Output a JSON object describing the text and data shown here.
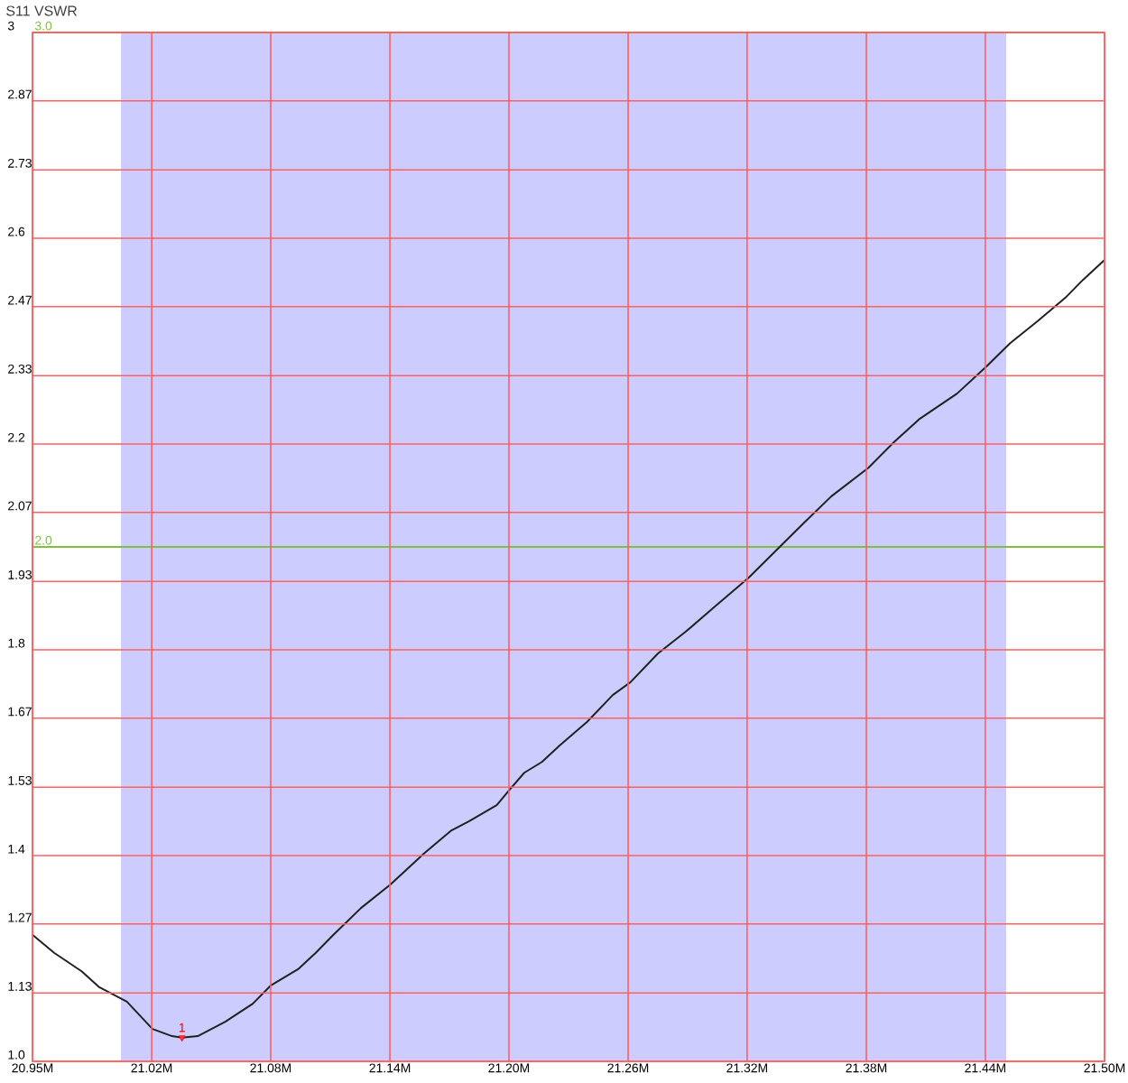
{
  "chart_data": {
    "type": "line",
    "title": "S11 VSWR",
    "x": [
      20.955,
      20.966,
      20.98,
      20.989,
      21.003,
      21.016,
      21.026,
      21.031,
      21.039,
      21.053,
      21.067,
      21.076,
      21.09,
      21.099,
      21.108,
      21.122,
      21.137,
      21.154,
      21.168,
      21.177,
      21.191,
      21.198,
      21.205,
      21.214,
      21.223,
      21.237,
      21.25,
      21.259,
      21.273,
      21.287,
      21.301,
      21.319,
      21.333,
      21.347,
      21.361,
      21.38,
      21.393,
      21.406,
      21.425,
      21.44,
      21.452,
      21.466,
      21.48,
      21.489,
      21.5
    ],
    "series": [
      {
        "color": "#202020",
        "values": [
          1.246,
          1.211,
          1.175,
          1.144,
          1.116,
          1.063,
          1.049,
          1.046,
          1.049,
          1.077,
          1.112,
          1.147,
          1.179,
          1.211,
          1.246,
          1.298,
          1.344,
          1.404,
          1.449,
          1.467,
          1.498,
          1.53,
          1.561,
          1.582,
          1.614,
          1.66,
          1.712,
          1.737,
          1.793,
          1.835,
          1.881,
          1.94,
          1.993,
          2.046,
          2.098,
          2.154,
          2.204,
          2.249,
          2.298,
          2.351,
          2.396,
          2.439,
          2.484,
          2.519,
          2.558
        ]
      }
    ],
    "xlim": [
      20.955,
      21.5
    ],
    "xticks": [
      {
        "value": 20.955,
        "label": "20.95M"
      },
      {
        "value": 21.0156,
        "label": "21.02M"
      },
      {
        "value": 21.0761,
        "label": "21.08M"
      },
      {
        "value": 21.1367,
        "label": "21.14M"
      },
      {
        "value": 21.1972,
        "label": "21.20M"
      },
      {
        "value": 21.2578,
        "label": "21.26M"
      },
      {
        "value": 21.3183,
        "label": "21.32M"
      },
      {
        "value": 21.3789,
        "label": "21.38M"
      },
      {
        "value": 21.4394,
        "label": "21.44M"
      },
      {
        "value": 21.5,
        "label": "21.50M"
      }
    ],
    "ylim": [
      1.0,
      3.0
    ],
    "yticks": [
      {
        "value": 1.0,
        "label": "1.0"
      },
      {
        "value": 1.133,
        "label": "1.13"
      },
      {
        "value": 1.267,
        "label": "1.27"
      },
      {
        "value": 1.4,
        "label": "1.4"
      },
      {
        "value": 1.533,
        "label": "1.53"
      },
      {
        "value": 1.667,
        "label": "1.67"
      },
      {
        "value": 1.8,
        "label": "1.8"
      },
      {
        "value": 1.933,
        "label": "1.93"
      },
      {
        "value": 2.067,
        "label": "2.07"
      },
      {
        "value": 2.2,
        "label": "2.2"
      },
      {
        "value": 2.333,
        "label": "2.33"
      },
      {
        "value": 2.467,
        "label": "2.47"
      },
      {
        "value": 2.6,
        "label": "2.6"
      },
      {
        "value": 2.733,
        "label": "2.73"
      },
      {
        "value": 2.867,
        "label": "2.87"
      },
      {
        "value": 3.0,
        "label": "3"
      }
    ],
    "grid": true,
    "line_style": "solid",
    "bands": [
      {
        "axis": "x",
        "from": 21.0,
        "to": 21.45,
        "color": "#ccccff"
      }
    ],
    "ref_lines": [
      {
        "axis": "y",
        "value": 3.0,
        "label": "3.0",
        "color": "#80c040"
      },
      {
        "axis": "y",
        "value": 2.0,
        "label": "2.0",
        "color": "#80c040"
      }
    ],
    "annotations": [
      {
        "text": "1",
        "x": 21.031,
        "y": 1.046
      }
    ]
  }
}
